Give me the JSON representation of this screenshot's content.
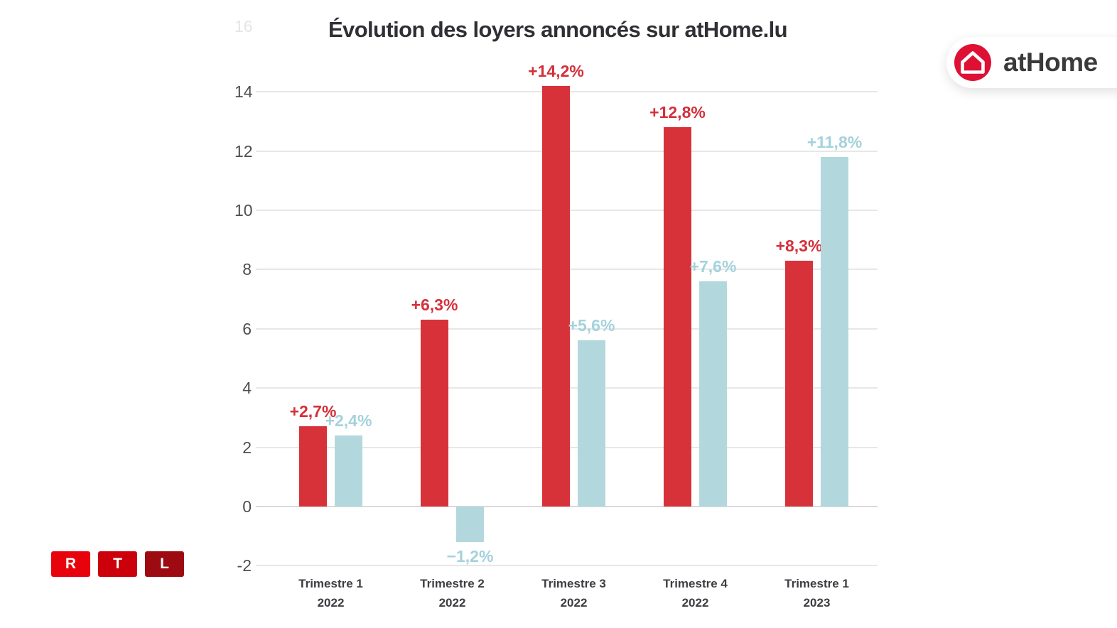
{
  "chart_data": {
    "type": "bar",
    "title": "Évolution des loyers annoncés sur atHome.lu",
    "categories": [
      {
        "line1": "Trimestre 1",
        "line2": "2022"
      },
      {
        "line1": "Trimestre 2",
        "line2": "2022"
      },
      {
        "line1": "Trimestre 3",
        "line2": "2022"
      },
      {
        "line1": "Trimestre 4",
        "line2": "2022"
      },
      {
        "line1": "Trimestre 1",
        "line2": "2023"
      }
    ],
    "series": [
      {
        "name": "serie-rouge",
        "color": "#d7323a",
        "label_color": "#d4303a",
        "values": [
          2.7,
          6.3,
          14.2,
          12.8,
          8.3
        ],
        "data_labels": [
          "+2,7%",
          "+6,3%",
          "+14,2%",
          "+12,8%",
          "+8,3%"
        ]
      },
      {
        "name": "serie-bleu-clair",
        "color": "#b2d8de",
        "label_color": "#a4d2dc",
        "values": [
          2.4,
          -1.2,
          5.6,
          7.6,
          11.8
        ],
        "data_labels": [
          "+2,4%",
          "−1,2%",
          "+5,6%",
          "+7,6%",
          "+11,8%"
        ]
      }
    ],
    "y_ticks": [
      -2,
      0,
      2,
      4,
      6,
      8,
      10,
      12,
      14
    ],
    "faint_top_tick": "16",
    "ylim": [
      -2.9,
      16.3
    ],
    "grid": true,
    "legend": "none"
  },
  "branding": {
    "athome_badge": {
      "label": "atHome",
      "icon": "home-icon",
      "icon_bg": "#de1135",
      "badge_bg": "#ffffff",
      "text_color": "#3a3a3a"
    },
    "rtl_logo": {
      "blocks": [
        {
          "letter": "R",
          "color": "#e8020c"
        },
        {
          "letter": "T",
          "color": "#cb000b"
        },
        {
          "letter": "L",
          "color": "#9d0a12"
        }
      ]
    }
  }
}
